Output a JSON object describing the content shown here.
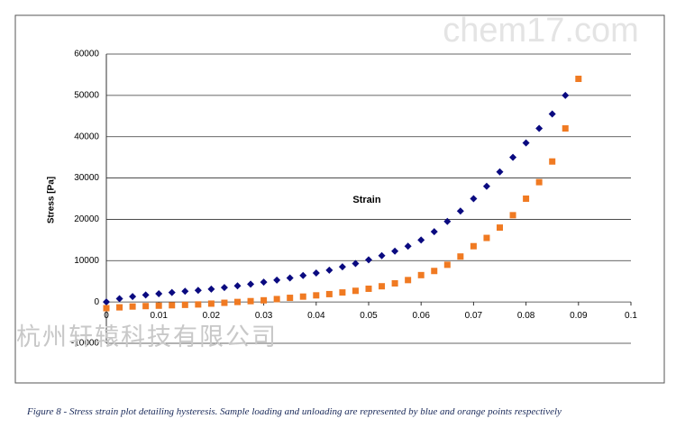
{
  "chart_data": {
    "type": "scatter",
    "xlabel": "Strain",
    "ylabel": "Stress [Pa]",
    "xlim": [
      0,
      0.1
    ],
    "xticks": [
      0,
      0.01,
      0.02,
      0.03,
      0.04,
      0.05,
      0.06,
      0.07,
      0.08,
      0.09,
      0.1
    ],
    "ylim": [
      -10000,
      60000
    ],
    "yticks": [
      -10000,
      0,
      10000,
      20000,
      30000,
      40000,
      50000,
      60000
    ],
    "grid": true,
    "series": [
      {
        "color": "#0a0a80",
        "marker": "diamond",
        "x": [
          0,
          0.0025,
          0.005,
          0.0075,
          0.01,
          0.0125,
          0.015,
          0.0175,
          0.02,
          0.0225,
          0.025,
          0.0275,
          0.03,
          0.0325,
          0.035,
          0.0375,
          0.04,
          0.0425,
          0.045,
          0.0475,
          0.05,
          0.0525,
          0.055,
          0.0575,
          0.06,
          0.0625,
          0.065,
          0.0675,
          0.07,
          0.0725,
          0.075,
          0.0775,
          0.08,
          0.0825,
          0.085,
          0.0875
        ],
        "values": [
          0,
          800,
          1300,
          1700,
          2000,
          2300,
          2600,
          2800,
          3100,
          3500,
          3900,
          4300,
          4800,
          5300,
          5800,
          6400,
          7000,
          7700,
          8500,
          9300,
          10200,
          11200,
          12300,
          13500,
          15000,
          17000,
          19500,
          22000,
          25000,
          28000,
          31500,
          35000,
          38500,
          42000,
          45500,
          50000
        ]
      },
      {
        "color": "#f07a22",
        "marker": "square",
        "x": [
          0,
          0.0025,
          0.005,
          0.0075,
          0.01,
          0.0125,
          0.015,
          0.0175,
          0.02,
          0.0225,
          0.025,
          0.0275,
          0.03,
          0.0325,
          0.035,
          0.0375,
          0.04,
          0.0425,
          0.045,
          0.0475,
          0.05,
          0.0525,
          0.055,
          0.0575,
          0.06,
          0.0625,
          0.065,
          0.0675,
          0.07,
          0.0725,
          0.075,
          0.0775,
          0.08,
          0.0825,
          0.085,
          0.0875,
          0.09
        ],
        "values": [
          -1500,
          -1300,
          -1100,
          -1000,
          -900,
          -800,
          -700,
          -600,
          -400,
          -200,
          0,
          200,
          400,
          700,
          1000,
          1300,
          1600,
          1900,
          2300,
          2700,
          3200,
          3800,
          4500,
          5300,
          6500,
          7500,
          9000,
          11000,
          13500,
          15500,
          18000,
          21000,
          25000,
          29000,
          34000,
          42000,
          54000
        ]
      }
    ]
  },
  "caption": "Figure 8 - Stress strain plot detailing hysteresis. Sample loading and unloading are represented by blue and orange points respectively",
  "watermarks": [
    "chem17.com",
    "杭州轩辕科技有限公司"
  ]
}
